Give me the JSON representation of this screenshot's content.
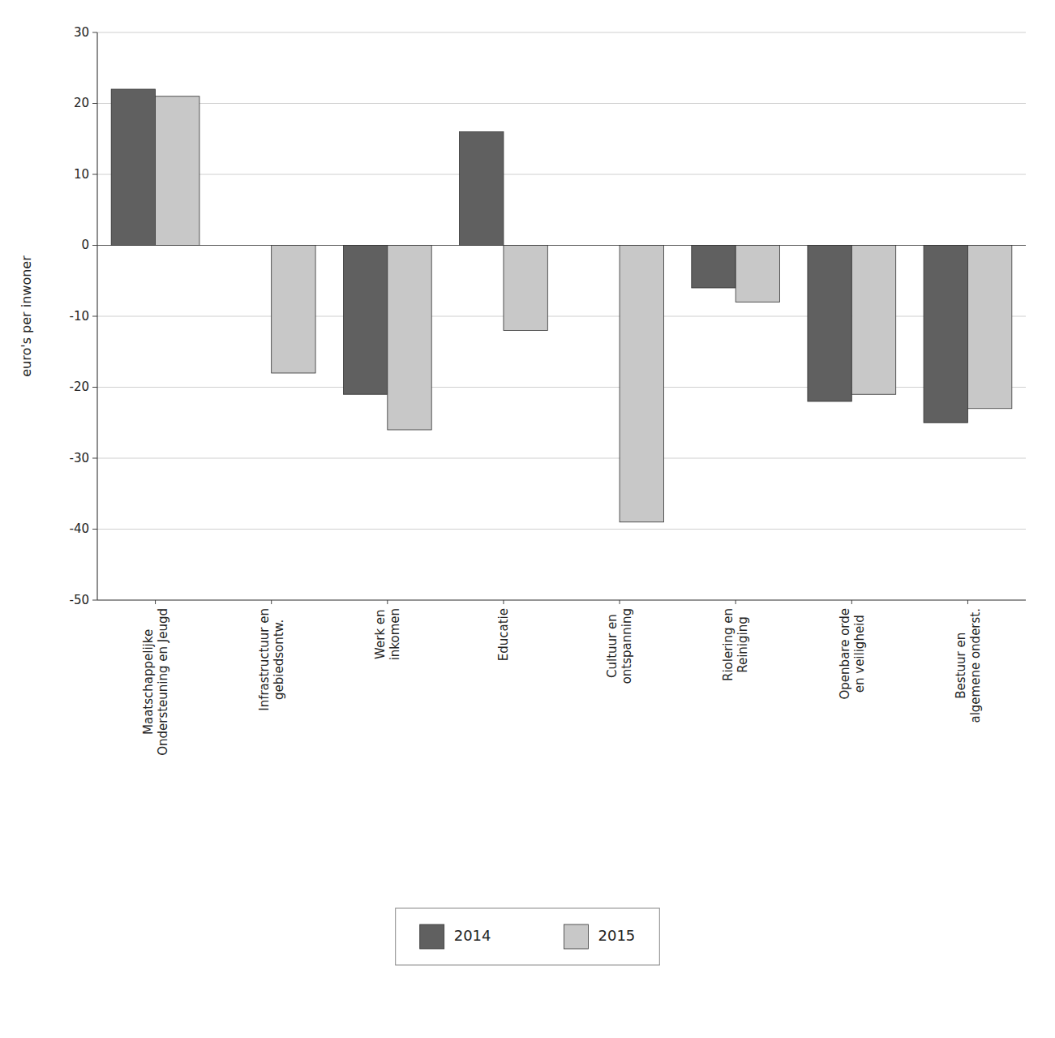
{
  "chart_data": {
    "type": "bar",
    "categories": [
      "Maatschappelijke\nOndersteuning en Jeugd",
      "Infrastructuur en\ngebiedsontw.",
      "Werk en\ninkomen",
      "Educatie",
      "Cultuur en\nontspanning",
      "Riolering en\nReiniging",
      "Openbare orde\nen veiligheid",
      "Bestuur en\nalgemene onderst."
    ],
    "series": [
      {
        "name": "2014",
        "color": "#606060",
        "values": [
          22,
          0,
          -21,
          16,
          0,
          -6,
          -22,
          -25
        ]
      },
      {
        "name": "2015",
        "color": "#c8c8c8",
        "values": [
          21,
          -18,
          -26,
          -12,
          -39,
          -8,
          -21,
          -23
        ]
      }
    ],
    "ylabel": "euro's per inwoner",
    "ylim": [
      -50,
      30
    ],
    "yticks": [
      -50,
      -40,
      -30,
      -20,
      -10,
      0,
      10,
      20,
      30
    ],
    "grid": true,
    "legend": "bottom"
  }
}
